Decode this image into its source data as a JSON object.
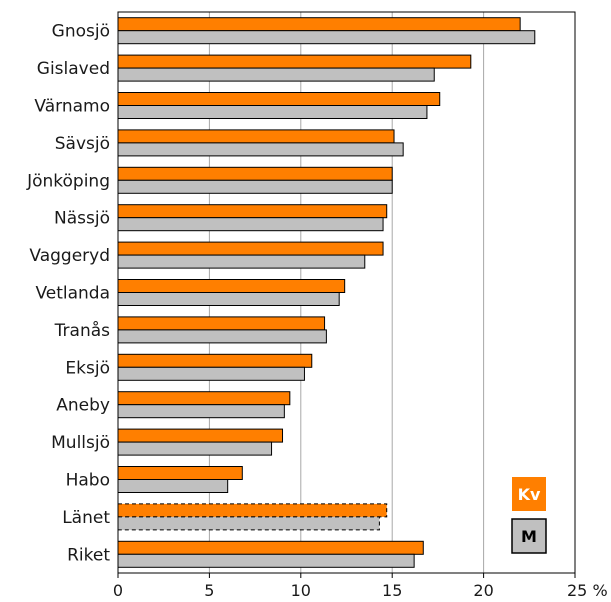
{
  "chart_data": {
    "type": "bar",
    "orientation": "horizontal",
    "categories": [
      "Gnosjö",
      "Gislaved",
      "Värnamo",
      "Sävsjö",
      "Jönköping",
      "Nässjö",
      "Vaggeryd",
      "Vetlanda",
      "Tranås",
      "Eksjö",
      "Aneby",
      "Mullsjö",
      "Habo",
      "Länet",
      "Riket"
    ],
    "series": [
      {
        "name": "Kv",
        "color": "#ff7f00",
        "values": [
          22.0,
          19.3,
          17.6,
          15.1,
          15.0,
          14.7,
          14.5,
          12.4,
          11.3,
          10.6,
          9.4,
          9.0,
          6.8,
          14.7,
          16.7
        ]
      },
      {
        "name": "M",
        "color": "#c0c0c0",
        "values": [
          22.8,
          17.3,
          16.9,
          15.6,
          15.0,
          14.5,
          13.5,
          12.1,
          11.4,
          10.2,
          9.1,
          8.4,
          6.0,
          14.3,
          16.2
        ]
      }
    ],
    "dashed_categories": [
      "Länet"
    ],
    "xlim": [
      0,
      25
    ],
    "xticks": [
      0,
      5,
      10,
      15,
      20,
      25
    ],
    "xtick_labels": [
      "0",
      "5",
      "10",
      "15",
      "20",
      "25 %"
    ],
    "grid": true,
    "legend_position": "bottom-right",
    "title": "",
    "xlabel": "",
    "ylabel": ""
  }
}
